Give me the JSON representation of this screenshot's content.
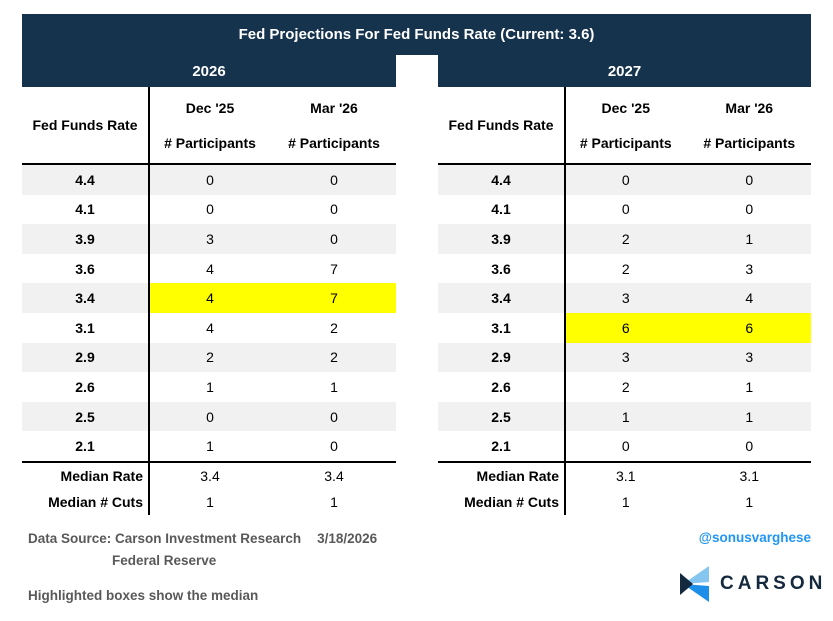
{
  "title": "Fed Projections For Fed Funds Rate (Current: 3.6)",
  "colors": {
    "navy": "#16334D",
    "stripe": "#F1F1F1",
    "highlight": "#FFFF00",
    "footer-text": "#595959",
    "handle-blue": "#2196F3",
    "logo-light": "#85C6F0",
    "logo-bright": "#1E8FE8",
    "logo-navy": "#15293E"
  },
  "tables": [
    {
      "year": "2026",
      "rate_header": "Fed Funds Rate",
      "col1_period": "Dec '25",
      "col1_sub": "# Participants",
      "col2_period": "Mar '26",
      "col2_sub": "# Participants",
      "rows": [
        {
          "rate": "4.4",
          "values": [
            "0",
            "0"
          ],
          "shaded": true,
          "highlight": false
        },
        {
          "rate": "4.1",
          "values": [
            "0",
            "0"
          ],
          "shaded": false,
          "highlight": false
        },
        {
          "rate": "3.9",
          "values": [
            "3",
            "0"
          ],
          "shaded": true,
          "highlight": false
        },
        {
          "rate": "3.6",
          "values": [
            "4",
            "7"
          ],
          "shaded": false,
          "highlight": false
        },
        {
          "rate": "3.4",
          "values": [
            "4",
            "7"
          ],
          "shaded": true,
          "highlight": true
        },
        {
          "rate": "3.1",
          "values": [
            "4",
            "2"
          ],
          "shaded": false,
          "highlight": false
        },
        {
          "rate": "2.9",
          "values": [
            "2",
            "2"
          ],
          "shaded": true,
          "highlight": false
        },
        {
          "rate": "2.6",
          "values": [
            "1",
            "1"
          ],
          "shaded": false,
          "highlight": false
        },
        {
          "rate": "2.5",
          "values": [
            "0",
            "0"
          ],
          "shaded": true,
          "highlight": false
        },
        {
          "rate": "2.1",
          "values": [
            "1",
            "0"
          ],
          "shaded": false,
          "highlight": false
        }
      ],
      "median_rate_label": "Median Rate",
      "median_rate_values": [
        "3.4",
        "3.4"
      ],
      "median_cuts_label": "Median # Cuts",
      "median_cuts_values": [
        "1",
        "1"
      ]
    },
    {
      "year": "2027",
      "rate_header": "Fed Funds Rate",
      "col1_period": "Dec '25",
      "col1_sub": "# Participants",
      "col2_period": "Mar '26",
      "col2_sub": "# Participants",
      "rows": [
        {
          "rate": "4.4",
          "values": [
            "0",
            "0"
          ],
          "shaded": true,
          "highlight": false
        },
        {
          "rate": "4.1",
          "values": [
            "0",
            "0"
          ],
          "shaded": false,
          "highlight": false
        },
        {
          "rate": "3.9",
          "values": [
            "2",
            "1"
          ],
          "shaded": true,
          "highlight": false
        },
        {
          "rate": "3.6",
          "values": [
            "2",
            "3"
          ],
          "shaded": false,
          "highlight": false
        },
        {
          "rate": "3.4",
          "values": [
            "3",
            "4"
          ],
          "shaded": true,
          "highlight": false
        },
        {
          "rate": "3.1",
          "values": [
            "6",
            "6"
          ],
          "shaded": false,
          "highlight": true
        },
        {
          "rate": "2.9",
          "values": [
            "3",
            "3"
          ],
          "shaded": true,
          "highlight": false
        },
        {
          "rate": "2.6",
          "values": [
            "2",
            "1"
          ],
          "shaded": false,
          "highlight": false
        },
        {
          "rate": "2.5",
          "values": [
            "1",
            "1"
          ],
          "shaded": true,
          "highlight": false
        },
        {
          "rate": "2.1",
          "values": [
            "0",
            "0"
          ],
          "shaded": false,
          "highlight": false
        }
      ],
      "median_rate_label": "Median Rate",
      "median_rate_values": [
        "3.1",
        "3.1"
      ],
      "median_cuts_label": "Median # Cuts",
      "median_cuts_values": [
        "1",
        "1"
      ]
    }
  ],
  "footer": {
    "source_label": "Data Source: Carson Investment Research",
    "source_date": "3/18/2026",
    "source_org": "Federal Reserve",
    "note": "Highlighted boxes show the median",
    "handle": "@sonusvarghese",
    "logo_text": "CARSON"
  },
  "chart_data": [
    {
      "type": "table",
      "title": "2026",
      "columns": [
        "Fed Funds Rate",
        "Dec '25 # Participants",
        "Mar '26 # Participants"
      ],
      "rows": [
        [
          4.4,
          0,
          0
        ],
        [
          4.1,
          0,
          0
        ],
        [
          3.9,
          3,
          0
        ],
        [
          3.6,
          4,
          7
        ],
        [
          3.4,
          4,
          7
        ],
        [
          3.1,
          4,
          2
        ],
        [
          2.9,
          2,
          2
        ],
        [
          2.6,
          1,
          1
        ],
        [
          2.5,
          0,
          0
        ],
        [
          2.1,
          1,
          0
        ]
      ],
      "median_rate": [
        3.4,
        3.4
      ],
      "median_num_cuts": [
        1,
        1
      ],
      "highlighted_median_rate": 3.4
    },
    {
      "type": "table",
      "title": "2027",
      "columns": [
        "Fed Funds Rate",
        "Dec '25 # Participants",
        "Mar '26 # Participants"
      ],
      "rows": [
        [
          4.4,
          0,
          0
        ],
        [
          4.1,
          0,
          0
        ],
        [
          3.9,
          2,
          1
        ],
        [
          3.6,
          2,
          3
        ],
        [
          3.4,
          3,
          4
        ],
        [
          3.1,
          6,
          6
        ],
        [
          2.9,
          3,
          3
        ],
        [
          2.6,
          2,
          1
        ],
        [
          2.5,
          1,
          1
        ],
        [
          2.1,
          0,
          0
        ]
      ],
      "median_rate": [
        3.1,
        3.1
      ],
      "median_num_cuts": [
        1,
        1
      ],
      "highlighted_median_rate": 3.1
    }
  ]
}
